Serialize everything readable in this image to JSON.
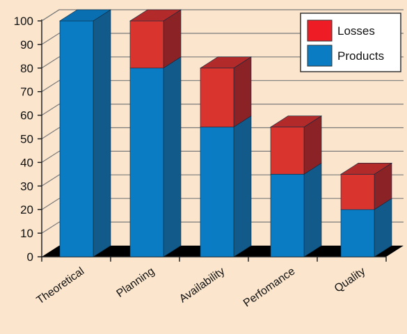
{
  "chart_data": {
    "type": "bar",
    "stacked": true,
    "three_d": true,
    "categories": [
      "Theoretical",
      "Planning",
      "Availability",
      "Perfomance",
      "Quality"
    ],
    "series": [
      {
        "name": "Products",
        "values": [
          100,
          80,
          55,
          35,
          20
        ],
        "color": "#0a7cc4"
      },
      {
        "name": "Losses",
        "values": [
          0,
          20,
          25,
          20,
          15
        ],
        "color": "#d9352e"
      }
    ],
    "ylim": [
      0,
      100
    ],
    "yticks": [
      0,
      10,
      20,
      30,
      40,
      50,
      60,
      70,
      80,
      90,
      100
    ],
    "grid": true,
    "legend_position": "top-right",
    "legend_order": [
      "Losses",
      "Products"
    ],
    "colors": {
      "background": "#fbe5cc",
      "floor": "#000000",
      "grid": "#7a7a7a",
      "products_side": "#125a8a",
      "products_top": "#0a6fb0",
      "losses_side": "#8a2226",
      "losses_top": "#b22a2a",
      "legend_losses_swatch": "#ee1c25",
      "legend_products_swatch": "#0a7cc4"
    }
  }
}
